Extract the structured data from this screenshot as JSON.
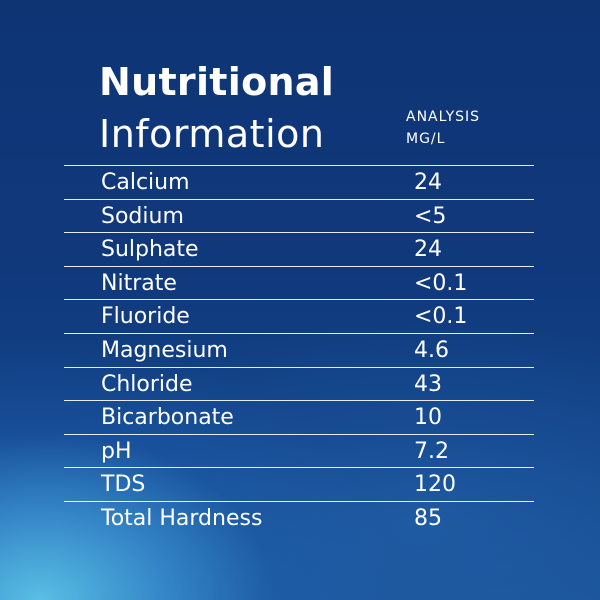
{
  "title": {
    "line1": "Nutritional",
    "line2": "Information"
  },
  "column_header": {
    "line1": "ANALYSIS",
    "line2": "MG/L"
  },
  "rows": [
    {
      "name": "Calcium",
      "value": "24"
    },
    {
      "name": "Sodium",
      "value": "<5"
    },
    {
      "name": "Sulphate",
      "value": "24"
    },
    {
      "name": "Nitrate",
      "value": "<0.1"
    },
    {
      "name": "Fluoride",
      "value": "<0.1"
    },
    {
      "name": "Magnesium",
      "value": "4.6"
    },
    {
      "name": "Chloride",
      "value": "43"
    },
    {
      "name": "Bicarbonate",
      "value": "10"
    },
    {
      "name": "pH",
      "value": "7.2"
    },
    {
      "name": "TDS",
      "value": "120"
    },
    {
      "name": "Total Hardness",
      "value": "85"
    }
  ],
  "colors": {
    "background_top": "#0e3474",
    "background_glow": "#5cc4e8",
    "text": "#ffffff"
  }
}
